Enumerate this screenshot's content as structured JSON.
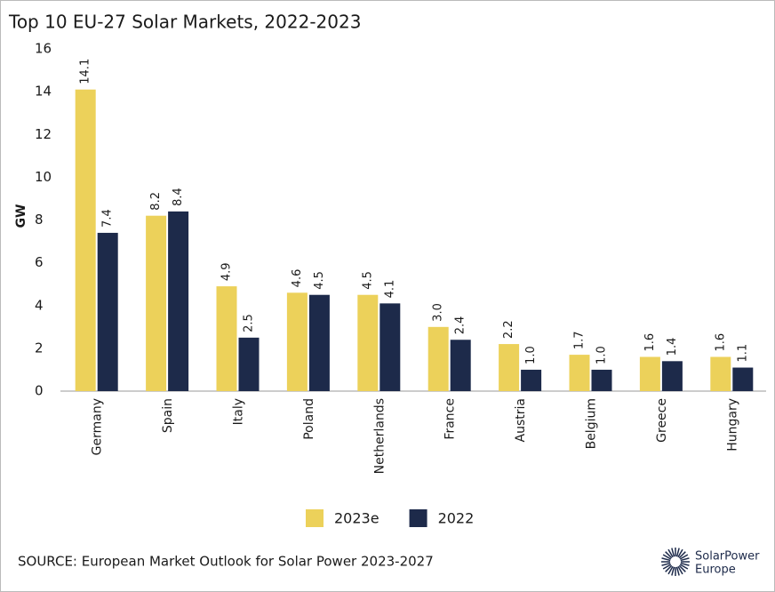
{
  "chart_data": {
    "type": "bar",
    "title": "Top 10 EU-27 Solar Markets, 2022-2023",
    "y_label": "GW",
    "categories": [
      "Germany",
      "Spain",
      "Italy",
      "Poland",
      "Netherlands",
      "France",
      "Austria",
      "Belgium",
      "Greece",
      "Hungary"
    ],
    "series": [
      {
        "name": "2023e",
        "color": "#ecd15a",
        "values": [
          14.1,
          8.2,
          4.9,
          4.6,
          4.5,
          3.0,
          2.2,
          1.7,
          1.6,
          1.6
        ],
        "value_labels": [
          "14.1",
          "8.2",
          "4.9",
          "4.6",
          "4.5",
          "3.0",
          "2.2",
          "1.7",
          "1.6",
          "1.6"
        ]
      },
      {
        "name": "2022",
        "color": "#1d2a4a",
        "values": [
          7.4,
          8.4,
          2.5,
          4.5,
          4.1,
          2.4,
          1.0,
          1.0,
          1.4,
          1.1
        ],
        "value_labels": [
          "7.4",
          "8.4",
          "2.5",
          "4.5",
          "4.1",
          "2.4",
          "1.0",
          "1.0",
          "1.4",
          "1.1"
        ]
      }
    ],
    "ylim": [
      0,
      16
    ],
    "yticks": [
      0,
      2,
      4,
      6,
      8,
      10,
      12,
      14,
      16
    ],
    "grid": false,
    "source": "SOURCE: European Market Outlook for Solar Power 2023-2027",
    "logo_text": [
      "SolarPower",
      "Europe"
    ]
  }
}
